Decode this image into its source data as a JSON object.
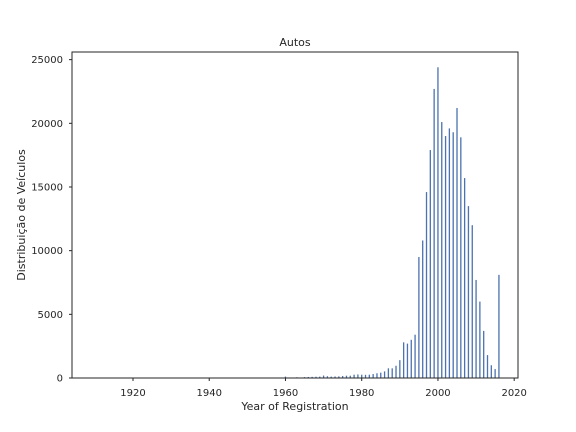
{
  "chart_data": {
    "type": "bar",
    "title": "Autos",
    "xlabel": "Year of Registration",
    "ylabel": "Distribuição de Veículos",
    "xlim": [
      1904,
      2021
    ],
    "ylim": [
      0,
      25600
    ],
    "xticks": [
      1920,
      1940,
      1960,
      1980,
      2000,
      2020
    ],
    "yticks": [
      0,
      5000,
      10000,
      15000,
      20000,
      25000
    ],
    "grid": false,
    "bar_color": "#4c72b0",
    "x": [
      1910,
      1960,
      1963,
      1965,
      1966,
      1967,
      1968,
      1969,
      1970,
      1971,
      1972,
      1973,
      1974,
      1975,
      1976,
      1977,
      1978,
      1979,
      1980,
      1981,
      1982,
      1983,
      1984,
      1985,
      1986,
      1987,
      1988,
      1989,
      1990,
      1991,
      1992,
      1993,
      1994,
      1995,
      1996,
      1997,
      1998,
      1999,
      2000,
      2001,
      2002,
      2003,
      2004,
      2005,
      2006,
      2007,
      2008,
      2009,
      2010,
      2011,
      2012,
      2013,
      2014,
      2015,
      2016
    ],
    "values": [
      40,
      110,
      60,
      70,
      80,
      90,
      100,
      110,
      190,
      140,
      110,
      120,
      130,
      160,
      180,
      180,
      260,
      280,
      260,
      250,
      260,
      310,
      370,
      420,
      520,
      760,
      760,
      960,
      1400,
      2800,
      2700,
      3000,
      3400,
      9500,
      10800,
      14600,
      17900,
      22700,
      24400,
      20100,
      19000,
      19600,
      19300,
      21200,
      18900,
      15700,
      13500,
      12000,
      7700,
      6000,
      3700,
      1800,
      1000,
      700,
      8100
    ]
  }
}
